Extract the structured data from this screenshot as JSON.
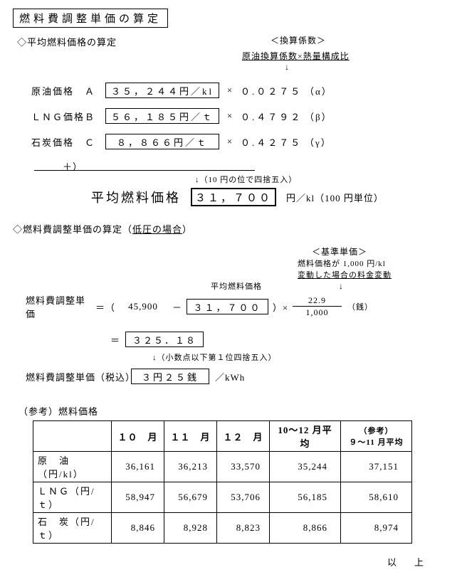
{
  "title": "燃料費調整単価の算定",
  "sec1": {
    "head": "◇平均燃料価格の算定",
    "coef_header": "＜換算係数＞",
    "coef_sub": "原油換算係数×熱量構成比",
    "arrow": "↓",
    "rows": [
      {
        "label": "原油価格　Ａ",
        "value": "３５，２４４円／kl",
        "op": "×",
        "coef": "０.０２７５",
        "gk": "（α）"
      },
      {
        "label": "ＬＮＧ価格Ｂ",
        "value": "５６，１８５円／ｔ",
        "op": "×",
        "coef": "０.４７９２",
        "gk": "（β）"
      },
      {
        "label": "石炭価格　Ｃ",
        "value": "８，８６６円／ｔ",
        "op": "×",
        "coef": "０.４２７５",
        "gk": "（γ）"
      }
    ],
    "plus": "＋）",
    "round_note": "↓（10 円の位で四捨五入）",
    "avg_label": "平均燃料価格",
    "avg_value": "３１，７００",
    "avg_unit": "円／kl（100 円単位）"
  },
  "sec2": {
    "head_a": "◇燃料費調整単価の算定（",
    "head_u": "低圧の場合",
    "head_b": "）",
    "base_header": "＜基準単価＞",
    "base_l1": "燃料価格が 1,000 円/kl",
    "base_l2": "変動した場合の料金変動",
    "arrow": "↓",
    "avg_caption": "平均燃料価格",
    "calc_label": "燃料費調整単価",
    "eq": "＝（",
    "v1": "45,900",
    "minus": "－",
    "v2": "３１，７００",
    "close_mul": "）×",
    "frac_num": "22.9",
    "frac_den": "1,000",
    "sen": "（銭）",
    "eq2": "＝",
    "result": "３２５．１８",
    "round2": "↓（小数点以下第１位四捨五入）",
    "final_label": "燃料費調整単価（税込）",
    "final_value": "３円２５銭",
    "final_unit": "／kWh"
  },
  "ref": {
    "head": "（参考）燃料価格",
    "cols": [
      "１０　月",
      "１１　月",
      "１２　月",
      "10～12 月平均"
    ],
    "ref_col_a": "（参考）",
    "ref_col_b": "９～11 月平均",
    "rows": [
      {
        "label": "原　油（円/kl）",
        "c": [
          "36,161",
          "36,213",
          "33,570",
          "35,244",
          "37,151"
        ]
      },
      {
        "label": "ＬＮＧ（円/ｔ）",
        "c": [
          "58,947",
          "56,679",
          "53,706",
          "56,185",
          "58,610"
        ]
      },
      {
        "label": "石　炭（円/ｔ）",
        "c": [
          "8,846",
          "8,928",
          "8,823",
          "8,866",
          "8,974"
        ]
      }
    ]
  },
  "footer": "以　上"
}
